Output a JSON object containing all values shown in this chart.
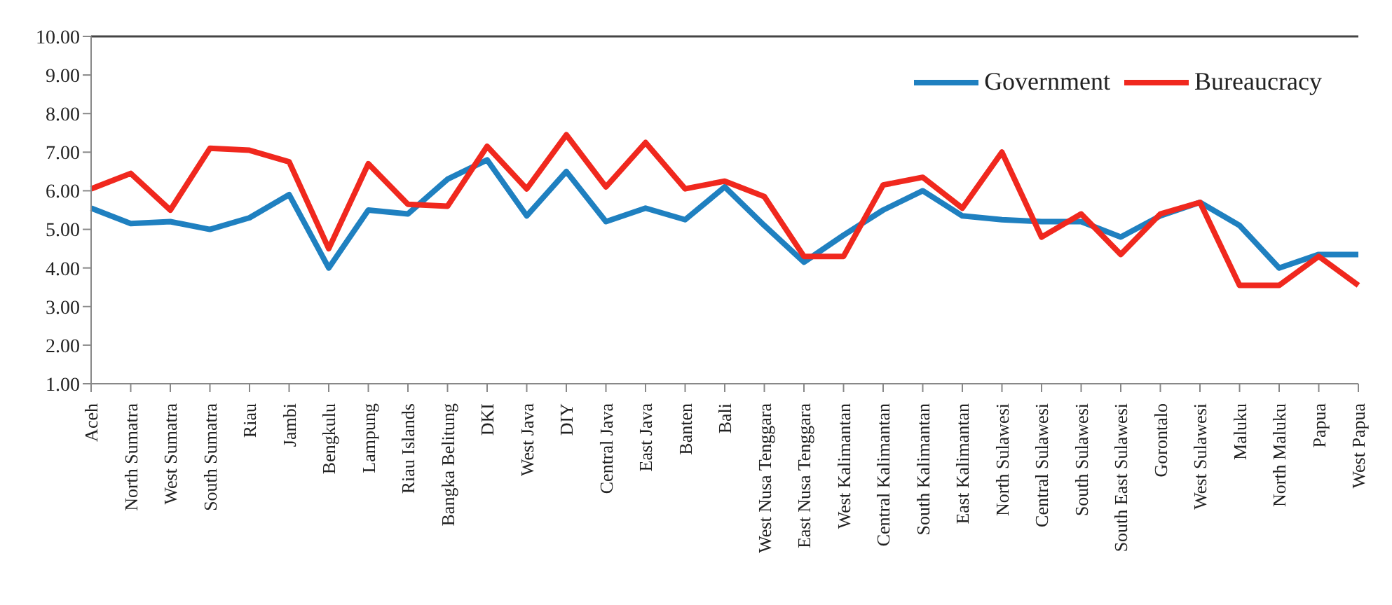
{
  "chart_data": {
    "type": "line",
    "categories": [
      "Aceh",
      "North Sumatra",
      "West Sumatra",
      "South Sumatra",
      "Riau",
      "Jambi",
      "Bengkulu",
      "Lampung",
      "Riau Islands",
      "Bangka Belitung",
      "DKI",
      "West Java",
      "DIY",
      "Central Java",
      "East Java",
      "Banten",
      "Bali",
      "West Nusa Tenggara",
      "East Nusa Tenggara",
      "West Kalimantan",
      "Central Kalimantan",
      "South Kalimantan",
      "East Kalimantan",
      "North Sulawesi",
      "Central Sulawesi",
      "South Sulawesi",
      "South East Sulawesi",
      "Gorontalo",
      "West Sulawesi",
      "Maluku",
      "North Maluku",
      "Papua",
      "West Papua"
    ],
    "series": [
      {
        "name": "Government",
        "color": "#1f80c0",
        "values": [
          5.55,
          5.15,
          5.2,
          5.0,
          5.3,
          5.9,
          4.0,
          5.5,
          5.4,
          6.3,
          6.8,
          5.35,
          6.5,
          5.2,
          5.55,
          5.25,
          6.1,
          5.1,
          4.15,
          4.85,
          5.5,
          6.0,
          5.35,
          5.25,
          5.2,
          5.2,
          4.8,
          5.35,
          5.7,
          5.1,
          4.0,
          4.35,
          4.35
        ]
      },
      {
        "name": "Bureaucracy",
        "color": "#f0281e",
        "values": [
          6.05,
          6.45,
          5.5,
          7.1,
          7.05,
          6.75,
          4.5,
          6.7,
          5.65,
          5.6,
          7.15,
          6.05,
          7.45,
          6.1,
          7.25,
          6.05,
          6.25,
          5.85,
          4.3,
          4.3,
          6.15,
          6.35,
          5.55,
          7.0,
          4.8,
          5.4,
          4.35,
          5.4,
          5.7,
          3.55,
          3.55,
          4.3,
          3.55
        ]
      }
    ],
    "ylim": [
      1,
      10
    ],
    "yticks": [
      {
        "value": 1,
        "label": "1.00"
      },
      {
        "value": 2,
        "label": "2.00"
      },
      {
        "value": 3,
        "label": "3.00"
      },
      {
        "value": 4,
        "label": "4.00"
      },
      {
        "value": 5,
        "label": "5.00"
      },
      {
        "value": 6,
        "label": "6.00"
      },
      {
        "value": 7,
        "label": "7.00"
      },
      {
        "value": 8,
        "label": "8.00"
      },
      {
        "value": 9,
        "label": "9.00"
      },
      {
        "value": 10,
        "label": "10.00"
      }
    ],
    "grid": false,
    "legend": "top right",
    "marker": "none",
    "line_style": "solid"
  }
}
